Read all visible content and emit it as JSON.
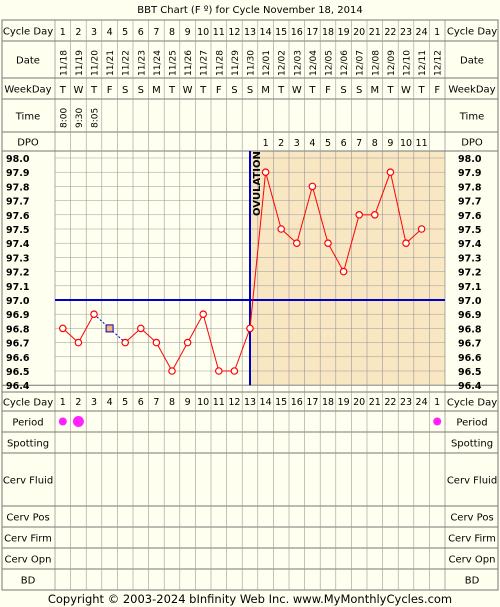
{
  "chart_data": {
    "type": "line",
    "title": "BBT Chart (F º) for Cycle November 18, 2014",
    "row_labels": {
      "cycle_day": "Cycle Day",
      "date": "Date",
      "weekday": "WeekDay",
      "time": "Time",
      "dpo": "DPO",
      "period": "Period",
      "spotting": "Spotting",
      "cerv_fluid": "Cerv Fluid",
      "cerv_pos": "Cerv Pos",
      "cerv_firm": "Cerv Firm",
      "cerv_opn": "Cerv Opn",
      "bd": "BD"
    },
    "cycle_days": [
      "1",
      "2",
      "3",
      "4",
      "5",
      "6",
      "7",
      "8",
      "9",
      "10",
      "11",
      "12",
      "13",
      "14",
      "15",
      "16",
      "17",
      "18",
      "19",
      "20",
      "21",
      "22",
      "23",
      "24",
      "1"
    ],
    "dates": [
      "11/18",
      "11/19",
      "11/20",
      "11/21",
      "11/22",
      "11/23",
      "11/24",
      "11/25",
      "11/26",
      "11/27",
      "11/28",
      "11/29",
      "11/30",
      "12/01",
      "12/02",
      "12/03",
      "12/04",
      "12/05",
      "12/06",
      "12/07",
      "12/08",
      "12/09",
      "12/10",
      "12/11",
      "12/12"
    ],
    "weekdays": [
      "T",
      "W",
      "T",
      "F",
      "S",
      "S",
      "M",
      "T",
      "W",
      "T",
      "F",
      "S",
      "S",
      "M",
      "T",
      "W",
      "T",
      "F",
      "S",
      "S",
      "M",
      "T",
      "W",
      "T",
      "F"
    ],
    "times": [
      "8:00",
      "9:30",
      "8:05",
      "",
      "",
      "",
      "",
      "",
      "",
      "",
      "",
      "",
      "",
      "",
      "",
      "",
      "",
      "",
      "",
      "",
      "",
      "",
      "",
      "",
      ""
    ],
    "dpo": [
      "",
      "",
      "",
      "",
      "",
      "",
      "",
      "",
      "",
      "",
      "",
      "",
      "",
      "1",
      "2",
      "3",
      "4",
      "5",
      "6",
      "7",
      "8",
      "9",
      "10",
      "11",
      ""
    ],
    "temps": [
      96.8,
      96.7,
      96.9,
      96.8,
      96.7,
      96.8,
      96.7,
      96.5,
      96.7,
      96.9,
      96.5,
      96.5,
      96.8,
      97.9,
      97.5,
      97.4,
      97.8,
      97.4,
      97.2,
      97.6,
      97.6,
      97.9,
      97.4,
      97.5,
      null
    ],
    "highlighted_point_day_index": 3,
    "period": [
      "light",
      "heavy",
      "",
      "",
      "",
      "",
      "",
      "",
      "",
      "",
      "",
      "",
      "",
      "",
      "",
      "",
      "",
      "",
      "",
      "",
      "",
      "",
      "",
      "",
      "light"
    ],
    "y_ticks": [
      "98.0",
      "97.9",
      "97.8",
      "97.7",
      "97.6",
      "97.5",
      "97.4",
      "97.3",
      "97.2",
      "97.1",
      "97.0",
      "96.9",
      "96.8",
      "96.7",
      "96.6",
      "96.5",
      "96.4"
    ],
    "ylim": [
      96.4,
      98.0
    ],
    "coverline": 97.0,
    "ovulation_day_index": 12,
    "ovulation_label": "OVULATION",
    "grid": true
  },
  "colors": {
    "background": "#fffff0",
    "luteal_shade": "#f9e6c2",
    "grid": "#999999",
    "line": "#ff0000",
    "point_fill": "#ffffff",
    "highlight_fill": "#f2b66d",
    "highlight_stroke": "#0000cc",
    "coverline": "#0000cc",
    "period_marker": "#ff22ff"
  },
  "footer": {
    "copyright": "Copyright © 2003-2024 bInfinity Web Inc.",
    "url": "www.MyMonthlyCycles.com"
  }
}
